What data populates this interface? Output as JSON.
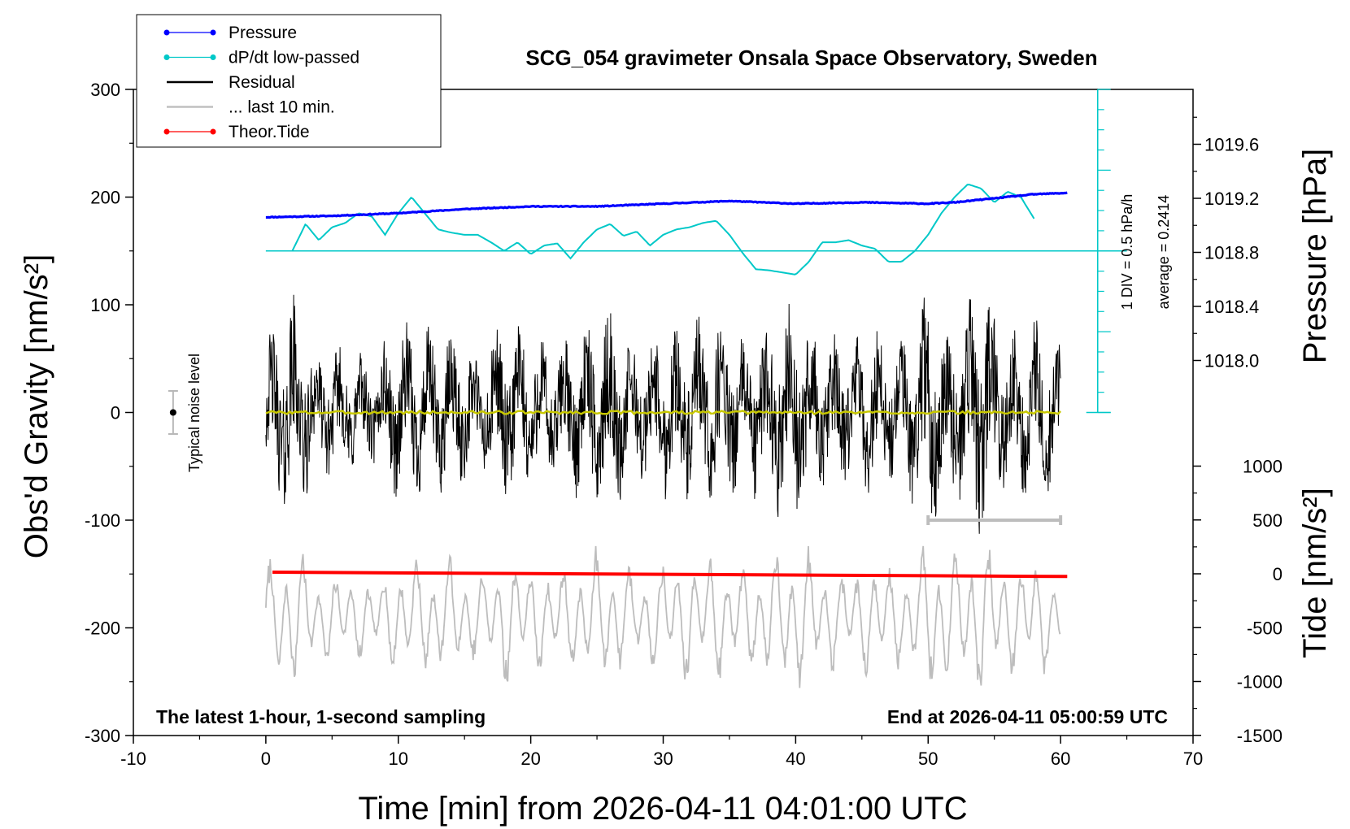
{
  "chart_data": {
    "type": "line",
    "title": "SCG_054 gravimeter Onsala Space Observatory, Sweden",
    "xlabel": "Time [min] from 2026-04-11 04:01:00 UTC",
    "ylabel_left": "Obs'd Gravity [nm/s²]",
    "ylabel_right_top": "Pressure [hPa]",
    "ylabel_right_bottom": "Tide [nm/s²]",
    "xlim": [
      -10,
      70
    ],
    "ylim_left": [
      -300,
      300
    ],
    "x_ticks": [
      "-10",
      "0",
      "10",
      "20",
      "30",
      "40",
      "50",
      "60",
      "70"
    ],
    "y_left_ticks": [
      "300",
      "200",
      "100",
      "0",
      "-100",
      "-200",
      "-300"
    ],
    "pressure_ticks": [
      "1019.6",
      "1019.2",
      "1018.8",
      "1018.4",
      "1018.0"
    ],
    "tide_ticks": [
      "1000",
      "500",
      "0",
      "-500",
      "-1000",
      "-1500"
    ],
    "note_left": "The latest 1-hour, 1-second sampling",
    "note_right": "End at 2026-04-11 05:00:59 UTC",
    "noise_label": "Typical noise level",
    "dpdt_scale_label": "1 DIV = 0.5 hPa/h",
    "dpdt_average_label": "average = 0.2414",
    "legend": [
      {
        "label": "Pressure",
        "color": "#0000ff",
        "marker": true
      },
      {
        "label": "dP/dt low-passed",
        "color": "#00c8c8",
        "marker": true
      },
      {
        "label": "Residual",
        "color": "#000000",
        "marker": false
      },
      {
        "label": "... last 10 min.",
        "color": "#c0c0c0",
        "marker": false
      },
      {
        "label": "Theor.Tide",
        "color": "#ff0000",
        "marker": true
      }
    ],
    "series": [
      {
        "name": "Pressure",
        "unit": "hPa",
        "color": "#0000ff",
        "x": [
          0,
          5,
          10,
          15,
          20,
          25,
          30,
          35,
          40,
          45,
          50,
          52,
          55,
          58,
          60.5
        ],
        "y": [
          1019.06,
          1019.07,
          1019.09,
          1019.12,
          1019.14,
          1019.14,
          1019.16,
          1019.18,
          1019.16,
          1019.17,
          1019.16,
          1019.17,
          1019.2,
          1019.23,
          1019.24
        ]
      },
      {
        "name": "dP/dt low-passed",
        "color": "#00c8c8",
        "x": [
          2,
          3,
          4,
          5,
          6,
          7,
          8,
          9,
          10,
          11,
          12,
          13,
          14,
          15,
          16,
          17,
          18,
          19,
          20,
          21,
          22,
          23,
          24,
          25,
          26,
          27,
          28,
          29,
          30,
          31,
          32,
          33,
          34,
          35,
          36,
          37,
          38,
          39,
          40,
          41,
          42,
          43,
          44,
          45,
          46,
          47,
          48,
          49,
          50,
          51,
          52,
          53,
          54,
          55,
          56,
          57,
          58
        ],
        "y": [
          150,
          175,
          160,
          172,
          176,
          185,
          182,
          165,
          185,
          200,
          185,
          170,
          167,
          165,
          165,
          158,
          150,
          158,
          147,
          155,
          157,
          143,
          158,
          170,
          175,
          164,
          168,
          155,
          165,
          170,
          172,
          176,
          178,
          165,
          148,
          133,
          132,
          130,
          128,
          140,
          158,
          158,
          160,
          155,
          152,
          140,
          140,
          150,
          165,
          185,
          200,
          212,
          208,
          195,
          205,
          200,
          180
        ]
      },
      {
        "name": "Theor.Tide",
        "unit": "nm/s²",
        "color": "#ff0000",
        "x": [
          0.5,
          60.5
        ],
        "y": [
          15,
          -25
        ]
      }
    ],
    "residual_envelope": {
      "x": [
        0,
        2,
        4,
        6,
        8,
        10,
        12,
        14,
        16,
        18,
        20,
        22,
        24,
        26,
        28,
        30,
        32,
        34,
        36,
        38,
        40,
        42,
        44,
        46,
        48,
        50,
        52,
        54,
        56,
        58,
        60
      ],
      "amplitude": [
        60,
        100,
        50,
        60,
        45,
        75,
        70,
        70,
        50,
        85,
        70,
        60,
        75,
        85,
        55,
        70,
        80,
        80,
        65,
        80,
        95,
        70,
        60,
        75,
        60,
        100,
        75,
        110,
        70,
        80,
        55
      ]
    },
    "noise_level": {
      "x": -7,
      "y": 0,
      "half_range": 20
    },
    "span_marker": {
      "x_start": 50,
      "x_end": 60,
      "y": -100
    },
    "dpdt_baseline_y": 150,
    "dpdt_scale_bar": {
      "x": 62.8,
      "y_bottom": 0,
      "y_top": 300
    }
  }
}
